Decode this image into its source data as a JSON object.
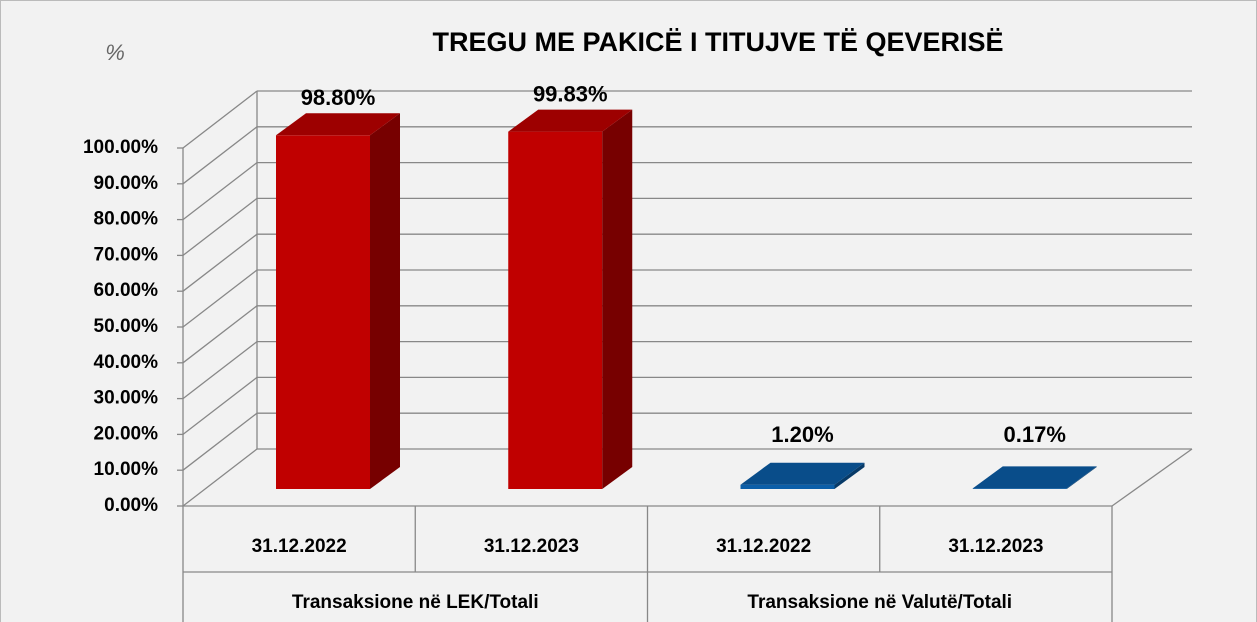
{
  "chart_data": {
    "type": "bar3d",
    "title": "TREGU ME PAKICË I TITUJVE TË QEVERISË",
    "y_label": "%",
    "categories": [
      "31.12.2022",
      "31.12.2023",
      "31.12.2022",
      "31.12.2023"
    ],
    "groups": [
      "Transaksione në LEK/Totali",
      "Transaksione në Valutë/Totali"
    ],
    "values": [
      98.8,
      99.83,
      1.2,
      0.17
    ],
    "value_labels": [
      "98.80%",
      "99.83%",
      "1.20%",
      "0.17%"
    ],
    "colors": [
      "#c00000",
      "#c00000",
      "#0b5ea8",
      "#0b5ea8"
    ],
    "ylim": [
      0,
      100
    ],
    "yticks": [
      {
        "value": 0,
        "label": "0.00%"
      },
      {
        "value": 10,
        "label": "10.00%"
      },
      {
        "value": 20,
        "label": "20.00%"
      },
      {
        "value": 30,
        "label": "30.00%"
      },
      {
        "value": 40,
        "label": "40.00%"
      },
      {
        "value": 50,
        "label": "50.00%"
      },
      {
        "value": 60,
        "label": "60.00%"
      },
      {
        "value": 70,
        "label": "70.00%"
      },
      {
        "value": 80,
        "label": "80.00%"
      },
      {
        "value": 90,
        "label": "90.00%"
      },
      {
        "value": 100,
        "label": "100.00%"
      }
    ],
    "grid": true
  }
}
